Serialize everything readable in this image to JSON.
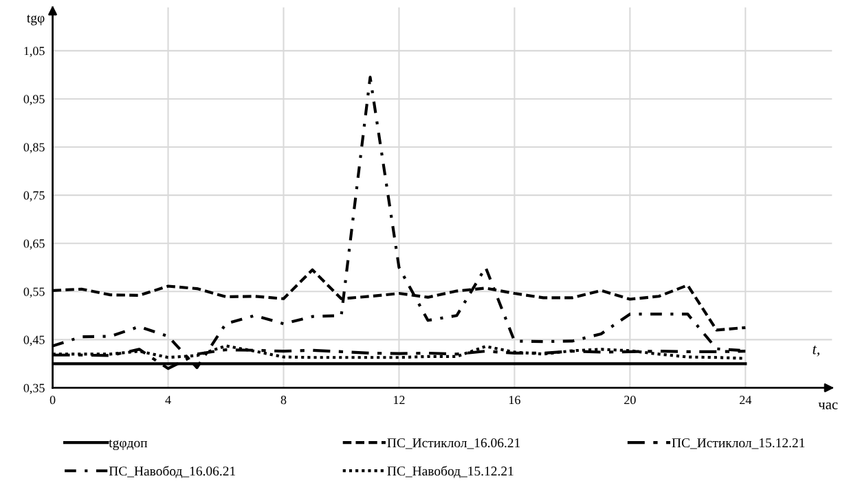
{
  "chart_data": {
    "type": "line",
    "ylabel": "tgφ",
    "xlabel": "t,",
    "annotations": [
      "час"
    ],
    "x": [
      0,
      1,
      2,
      3,
      4,
      5,
      6,
      7,
      8,
      9,
      10,
      11,
      12,
      13,
      14,
      15,
      16,
      17,
      18,
      19,
      20,
      21,
      22,
      23,
      24
    ],
    "xlim": [
      0,
      27
    ],
    "xticks": [
      0,
      4,
      8,
      12,
      16,
      20,
      24
    ],
    "ylim": [
      0.35,
      1.14
    ],
    "yticks": [
      {
        "value": 0.35,
        "label": "0,35"
      },
      {
        "value": 0.45,
        "label": "0,45"
      },
      {
        "value": 0.55,
        "label": "0,55"
      },
      {
        "value": 0.65,
        "label": "0,65"
      },
      {
        "value": 0.75,
        "label": "0,75"
      },
      {
        "value": 0.85,
        "label": "0,85"
      },
      {
        "value": 0.95,
        "label": "0,95"
      },
      {
        "value": 1.05,
        "label": "1,05"
      }
    ],
    "grid": true,
    "legend": "bottom",
    "series": [
      {
        "name": "tgφдоп",
        "color": "#000000",
        "line_style": "solid",
        "values": [
          0.4,
          0.4,
          0.4,
          0.4,
          0.4,
          0.4,
          0.4,
          0.4,
          0.4,
          0.4,
          0.4,
          0.4,
          0.4,
          0.4,
          0.4,
          0.4,
          0.4,
          0.4,
          0.4,
          0.4,
          0.4,
          0.4,
          0.4,
          0.4,
          0.4
        ]
      },
      {
        "name": "ПС_Истиклол_16.06.21",
        "color": "#000000",
        "line_style": "dashed",
        "values": [
          0.552,
          0.555,
          0.543,
          0.542,
          0.561,
          0.556,
          0.539,
          0.54,
          0.535,
          0.595,
          0.535,
          0.54,
          0.546,
          0.538,
          0.551,
          0.557,
          0.546,
          0.537,
          0.537,
          0.552,
          0.534,
          0.54,
          0.563,
          0.47,
          0.475
        ]
      },
      {
        "name": "ПС_Истиклол_15.12.21",
        "color": "#000000",
        "line_style": "longdash",
        "values": [
          0.418,
          0.418,
          0.417,
          0.43,
          0.39,
          0.42,
          0.429,
          0.428,
          0.426,
          0.428,
          0.425,
          0.422,
          0.421,
          0.422,
          0.42,
          0.426,
          0.422,
          0.422,
          0.426,
          0.424,
          0.425,
          0.426,
          0.425,
          0.425,
          0.426
        ]
      },
      {
        "name": "ПС_Навобод_16.06.21",
        "color": "#000000",
        "line_style": "dashdot",
        "values": [
          0.437,
          0.456,
          0.457,
          0.477,
          0.457,
          0.392,
          0.483,
          0.5,
          0.483,
          0.498,
          0.5,
          0.995,
          0.6,
          0.49,
          0.5,
          0.6,
          0.447,
          0.446,
          0.447,
          0.462,
          0.503,
          0.503,
          0.503,
          0.431,
          0.427
        ]
      },
      {
        "name": "ПС_Навобод_15.12.21",
        "color": "#000000",
        "line_style": "dotted",
        "values": [
          0.42,
          0.42,
          0.42,
          0.426,
          0.413,
          0.417,
          0.437,
          0.426,
          0.414,
          0.413,
          0.413,
          0.413,
          0.413,
          0.415,
          0.415,
          0.436,
          0.424,
          0.42,
          0.427,
          0.43,
          0.427,
          0.42,
          0.414,
          0.413,
          0.411
        ]
      }
    ]
  }
}
